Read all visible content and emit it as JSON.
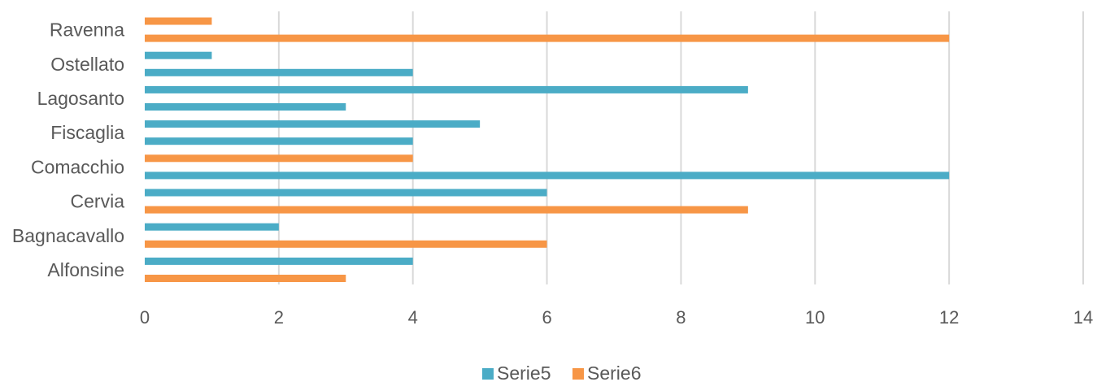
{
  "chart_data": {
    "type": "bar",
    "orientation": "horizontal",
    "xlim": [
      0,
      14
    ],
    "x_ticks": [
      0,
      2,
      4,
      6,
      8,
      10,
      12,
      14
    ],
    "grid": "vertical",
    "legend_position": "bottom",
    "category_labels": [
      "Ravenna",
      "Ostellato",
      "Lagosanto",
      "Fiscaglia",
      "Comacchio",
      "Cervia",
      "Bagnacavallo",
      "Alfonsine"
    ],
    "bars_top_to_bottom": [
      {
        "series": "Serie6",
        "value": 1
      },
      {
        "series": "Serie6",
        "value": 12
      },
      {
        "series": "Serie5",
        "value": 1
      },
      {
        "series": "Serie5",
        "value": 4
      },
      {
        "series": "Serie5",
        "value": 9
      },
      {
        "series": "Serie5",
        "value": 3
      },
      {
        "series": "Serie5",
        "value": 5
      },
      {
        "series": "Serie5",
        "value": 4
      },
      {
        "series": "Serie6",
        "value": 4
      },
      {
        "series": "Serie5",
        "value": 12
      },
      {
        "series": "Serie5",
        "value": 6
      },
      {
        "series": "Serie6",
        "value": 9
      },
      {
        "series": "Serie5",
        "value": 2
      },
      {
        "series": "Serie6",
        "value": 6
      },
      {
        "series": "Serie5",
        "value": 4
      },
      {
        "series": "Serie6",
        "value": 3
      }
    ],
    "series": [
      {
        "name": "Serie5",
        "color": "#4BACC6"
      },
      {
        "name": "Serie6",
        "color": "#F79646"
      }
    ]
  }
}
